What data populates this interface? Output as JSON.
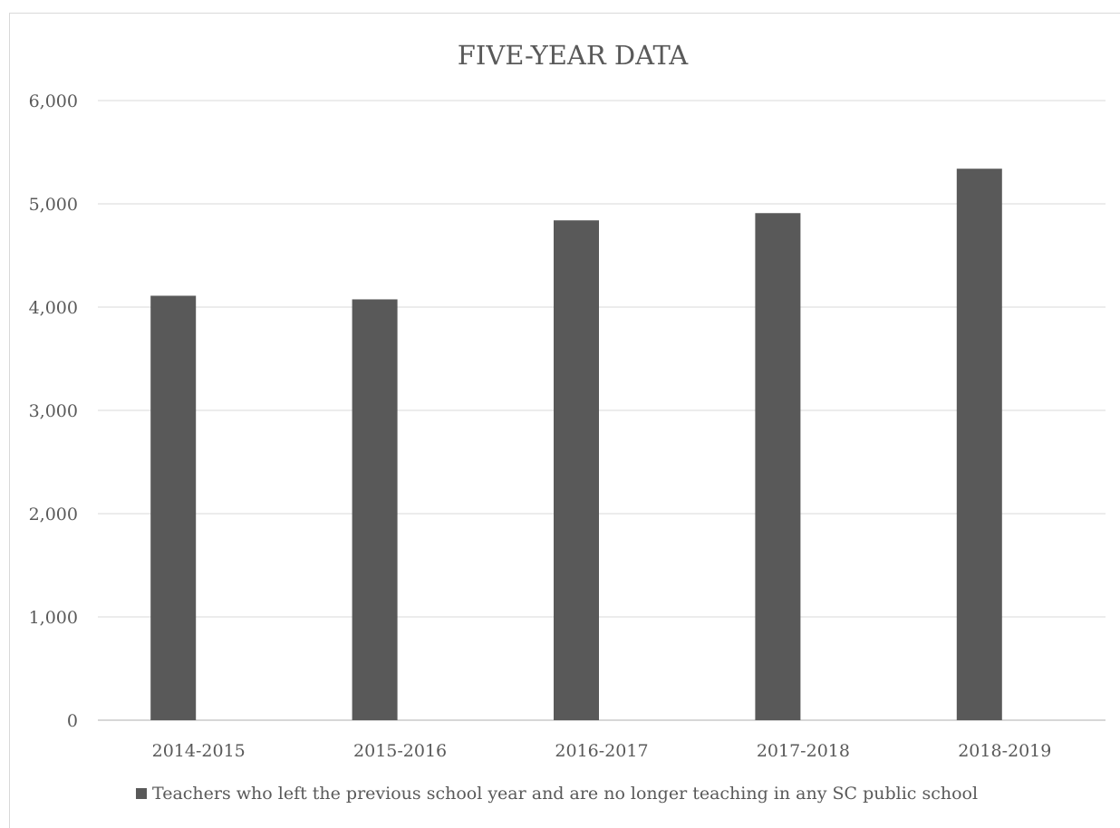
{
  "chart_data": {
    "type": "bar",
    "title": "FIVE-YEAR DATA",
    "xlabel": "",
    "ylabel": "",
    "categories": [
      "2014-2015",
      "2015-2016",
      "2016-2017",
      "2017-2018",
      "2018-2019"
    ],
    "series": [
      {
        "name": "Teachers who left the previous school year and are no longer teaching in any SC public school",
        "values": [
          4110,
          4075,
          4840,
          4910,
          5340
        ],
        "color": "#595959"
      }
    ],
    "ylim": [
      0,
      6000
    ],
    "yticks": [
      0,
      1000,
      2000,
      3000,
      4000,
      5000,
      6000
    ],
    "ytick_labels": [
      "0",
      "1,000",
      "2,000",
      "3,000",
      "4,000",
      "5,000",
      "6,000"
    ],
    "grid": true,
    "legend_position": "bottom"
  }
}
